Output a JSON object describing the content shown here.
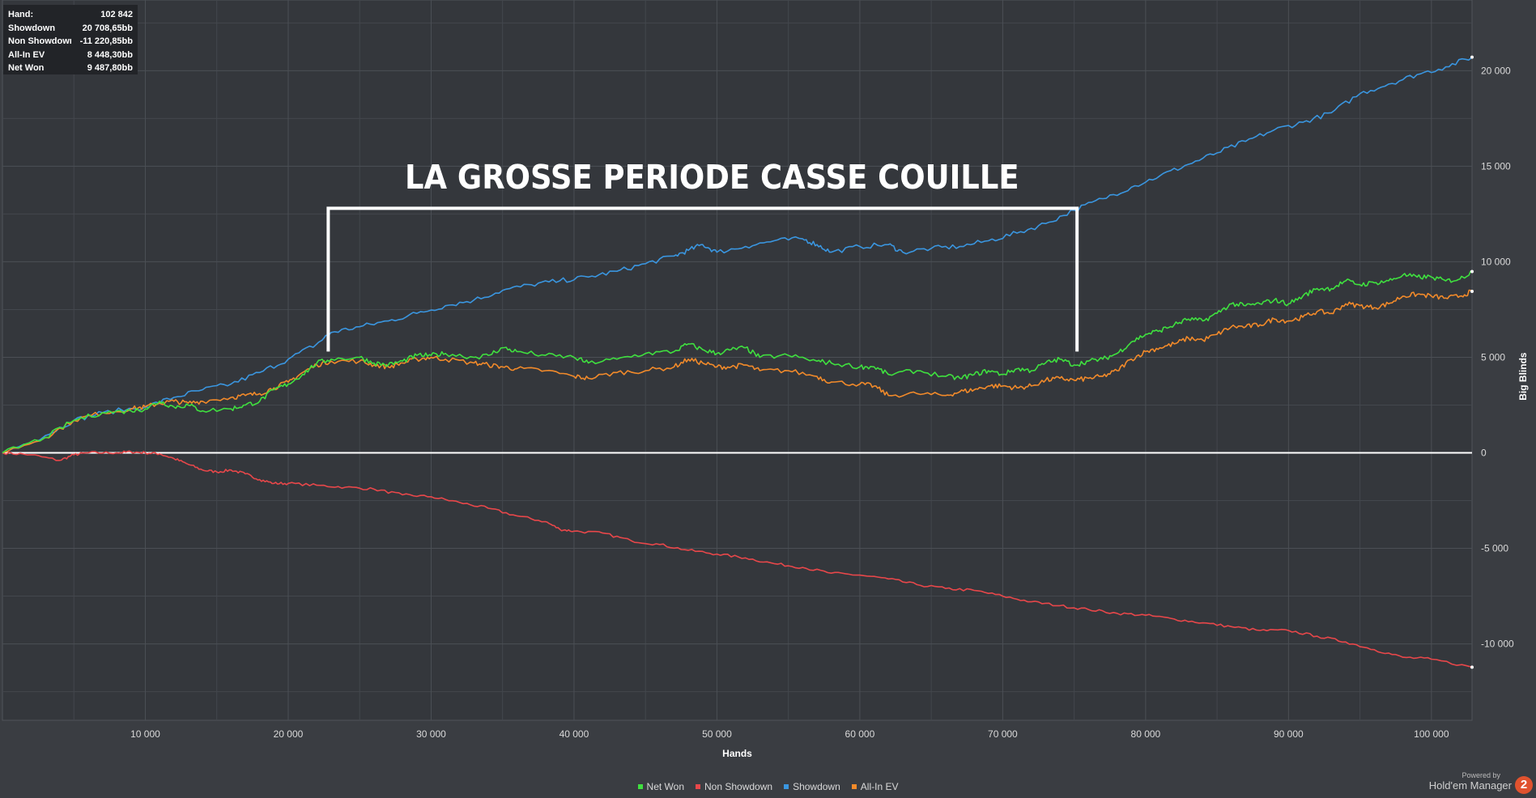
{
  "stats": [
    {
      "label": "Hand:",
      "value": "102 842"
    },
    {
      "label": "Showdown",
      "value": "20 708,65bb"
    },
    {
      "label": "Non Showdown",
      "value": "-11 220,85bb"
    },
    {
      "label": "All-In EV",
      "value": "8 448,30bb"
    },
    {
      "label": "Net Won",
      "value": "9 487,80bb"
    }
  ],
  "annotation": "LA GROSSE PERIODE CASSE COUILLE",
  "powered_by": {
    "small": "Powered by",
    "brand": "Hold'em Manager",
    "badge": "2"
  },
  "colors": {
    "background": "#3a3d42",
    "grid": "#4b4f55",
    "net_won": "#3fe03f",
    "non_showdown": "#e8474a",
    "showdown": "#3a96e0",
    "all_in_ev": "#f28a2a",
    "bracket": "#ffffff"
  },
  "chart_data": {
    "type": "line",
    "xlabel": "Hands",
    "ylabel": "Big Blinds",
    "xlim": [
      0,
      102842
    ],
    "ylim": [
      -14000,
      23700
    ],
    "x_ticks": [
      10000,
      20000,
      30000,
      40000,
      50000,
      60000,
      70000,
      80000,
      90000,
      100000
    ],
    "x_tick_labels": [
      "10 000",
      "20 000",
      "30 000",
      "40 000",
      "50 000",
      "60 000",
      "70 000",
      "80 000",
      "90 000",
      "100 000"
    ],
    "y_ticks": [
      -10000,
      -5000,
      0,
      5000,
      10000,
      15000,
      20000
    ],
    "y_tick_labels": [
      "-10 000",
      "-5 000",
      "0",
      "5 000",
      "10 000",
      "15 000",
      "20 000"
    ],
    "legend_position": "bottom",
    "grid": true,
    "series": [
      {
        "name": "Net Won",
        "color_key": "net_won",
        "points": [
          [
            0,
            0
          ],
          [
            3000,
            800
          ],
          [
            5000,
            1700
          ],
          [
            7000,
            2100
          ],
          [
            9000,
            2200
          ],
          [
            10000,
            2300
          ],
          [
            11000,
            2700
          ],
          [
            12000,
            2400
          ],
          [
            13000,
            2500
          ],
          [
            14000,
            2200
          ],
          [
            16000,
            2300
          ],
          [
            17000,
            2500
          ],
          [
            18000,
            2700
          ],
          [
            19000,
            3300
          ],
          [
            20000,
            3600
          ],
          [
            21000,
            4100
          ],
          [
            22000,
            4700
          ],
          [
            23000,
            4900
          ],
          [
            25000,
            5000
          ],
          [
            26000,
            4700
          ],
          [
            27000,
            4600
          ],
          [
            28000,
            4800
          ],
          [
            29000,
            5100
          ],
          [
            30000,
            5100
          ],
          [
            31000,
            5200
          ],
          [
            33000,
            5000
          ],
          [
            34000,
            5100
          ],
          [
            35000,
            5500
          ],
          [
            36000,
            5300
          ],
          [
            38000,
            5100
          ],
          [
            40000,
            5000
          ],
          [
            41000,
            4700
          ],
          [
            43000,
            4900
          ],
          [
            45000,
            5200
          ],
          [
            47000,
            5300
          ],
          [
            48000,
            5700
          ],
          [
            49000,
            5400
          ],
          [
            50000,
            5200
          ],
          [
            51000,
            5400
          ],
          [
            52000,
            5500
          ],
          [
            53000,
            5000
          ],
          [
            55000,
            5100
          ],
          [
            57000,
            4800
          ],
          [
            58000,
            4700
          ],
          [
            60000,
            4500
          ],
          [
            61000,
            4500
          ],
          [
            62000,
            4100
          ],
          [
            64000,
            4300
          ],
          [
            66000,
            4000
          ],
          [
            67000,
            3900
          ],
          [
            68000,
            4100
          ],
          [
            69000,
            4300
          ],
          [
            70000,
            4100
          ],
          [
            71000,
            4400
          ],
          [
            72000,
            4300
          ],
          [
            73000,
            4700
          ],
          [
            74000,
            4900
          ],
          [
            75000,
            4600
          ],
          [
            76000,
            4800
          ],
          [
            77000,
            4900
          ],
          [
            78000,
            5200
          ],
          [
            79000,
            5800
          ],
          [
            80000,
            6200
          ],
          [
            81000,
            6400
          ],
          [
            82000,
            6700
          ],
          [
            83000,
            7000
          ],
          [
            84000,
            6900
          ],
          [
            85000,
            7300
          ],
          [
            86000,
            7800
          ],
          [
            87000,
            7700
          ],
          [
            88000,
            7800
          ],
          [
            89000,
            8000
          ],
          [
            90000,
            7800
          ],
          [
            91000,
            8200
          ],
          [
            92000,
            8600
          ],
          [
            93000,
            8600
          ],
          [
            94000,
            9000
          ],
          [
            95000,
            8800
          ],
          [
            96000,
            8900
          ],
          [
            97000,
            9000
          ],
          [
            98000,
            9300
          ],
          [
            99000,
            9200
          ],
          [
            100000,
            9200
          ],
          [
            101000,
            9000
          ],
          [
            102000,
            9100
          ],
          [
            102842,
            9488
          ]
        ]
      },
      {
        "name": "Non Showdown",
        "color_key": "non_showdown",
        "points": [
          [
            0,
            0
          ],
          [
            2000,
            -100
          ],
          [
            4000,
            -400
          ],
          [
            5000,
            -100
          ],
          [
            6000,
            0
          ],
          [
            8000,
            0
          ],
          [
            9000,
            50
          ],
          [
            10000,
            0
          ],
          [
            11000,
            -50
          ],
          [
            12000,
            -300
          ],
          [
            13000,
            -600
          ],
          [
            14000,
            -900
          ],
          [
            15000,
            -1000
          ],
          [
            16000,
            -900
          ],
          [
            17000,
            -1100
          ],
          [
            18000,
            -1400
          ],
          [
            19000,
            -1600
          ],
          [
            20000,
            -1600
          ],
          [
            22000,
            -1700
          ],
          [
            24000,
            -1800
          ],
          [
            26000,
            -1900
          ],
          [
            28000,
            -2200
          ],
          [
            30000,
            -2300
          ],
          [
            32000,
            -2600
          ],
          [
            34000,
            -2900
          ],
          [
            36000,
            -3300
          ],
          [
            38000,
            -3600
          ],
          [
            39000,
            -4000
          ],
          [
            40000,
            -4100
          ],
          [
            42000,
            -4200
          ],
          [
            44000,
            -4600
          ],
          [
            46000,
            -4800
          ],
          [
            48000,
            -5100
          ],
          [
            50000,
            -5300
          ],
          [
            52000,
            -5500
          ],
          [
            54000,
            -5800
          ],
          [
            56000,
            -6000
          ],
          [
            58000,
            -6300
          ],
          [
            60000,
            -6400
          ],
          [
            62000,
            -6600
          ],
          [
            64000,
            -6900
          ],
          [
            66000,
            -7100
          ],
          [
            68000,
            -7200
          ],
          [
            70000,
            -7500
          ],
          [
            72000,
            -7800
          ],
          [
            74000,
            -8000
          ],
          [
            76000,
            -8200
          ],
          [
            78000,
            -8400
          ],
          [
            80000,
            -8500
          ],
          [
            82000,
            -8700
          ],
          [
            84000,
            -8900
          ],
          [
            86000,
            -9100
          ],
          [
            88000,
            -9300
          ],
          [
            90000,
            -9300
          ],
          [
            92000,
            -9600
          ],
          [
            94000,
            -9900
          ],
          [
            96000,
            -10300
          ],
          [
            98000,
            -10700
          ],
          [
            100000,
            -10800
          ],
          [
            102842,
            -11221
          ]
        ]
      },
      {
        "name": "Showdown",
        "color_key": "showdown",
        "points": [
          [
            0,
            0
          ],
          [
            3000,
            900
          ],
          [
            5000,
            1700
          ],
          [
            7000,
            2100
          ],
          [
            10000,
            2400
          ],
          [
            12000,
            2900
          ],
          [
            14000,
            3300
          ],
          [
            16000,
            3600
          ],
          [
            18000,
            4200
          ],
          [
            20000,
            4900
          ],
          [
            22000,
            5700
          ],
          [
            23000,
            6300
          ],
          [
            25000,
            6600
          ],
          [
            27000,
            6900
          ],
          [
            29000,
            7300
          ],
          [
            31000,
            7700
          ],
          [
            33000,
            8000
          ],
          [
            35000,
            8500
          ],
          [
            37000,
            8800
          ],
          [
            39000,
            9000
          ],
          [
            41000,
            9200
          ],
          [
            43000,
            9500
          ],
          [
            45000,
            9900
          ],
          [
            47000,
            10300
          ],
          [
            48000,
            10600
          ],
          [
            49000,
            10900
          ],
          [
            50000,
            10500
          ],
          [
            52000,
            10800
          ],
          [
            54000,
            11100
          ],
          [
            56000,
            11200
          ],
          [
            57000,
            10900
          ],
          [
            58000,
            10500
          ],
          [
            60000,
            10800
          ],
          [
            62000,
            10900
          ],
          [
            63000,
            10500
          ],
          [
            65000,
            10700
          ],
          [
            67000,
            10800
          ],
          [
            69000,
            11100
          ],
          [
            71000,
            11500
          ],
          [
            73000,
            12000
          ],
          [
            75000,
            12700
          ],
          [
            77000,
            13300
          ],
          [
            79000,
            13900
          ],
          [
            81000,
            14500
          ],
          [
            83000,
            15100
          ],
          [
            85000,
            15700
          ],
          [
            87000,
            16300
          ],
          [
            89000,
            16900
          ],
          [
            91000,
            17300
          ],
          [
            93000,
            17800
          ],
          [
            95000,
            18800
          ],
          [
            97000,
            19300
          ],
          [
            99000,
            19800
          ],
          [
            101000,
            20200
          ],
          [
            102842,
            20709
          ]
        ]
      },
      {
        "name": "All-In EV",
        "color_key": "all_in_ev",
        "points": [
          [
            0,
            0
          ],
          [
            3000,
            800
          ],
          [
            5000,
            1700
          ],
          [
            7000,
            2100
          ],
          [
            9000,
            2300
          ],
          [
            10000,
            2400
          ],
          [
            11000,
            2600
          ],
          [
            12000,
            2700
          ],
          [
            13000,
            2600
          ],
          [
            14000,
            2700
          ],
          [
            16000,
            2900
          ],
          [
            17000,
            3000
          ],
          [
            18000,
            3100
          ],
          [
            19000,
            3400
          ],
          [
            20000,
            3700
          ],
          [
            21000,
            4200
          ],
          [
            22000,
            4600
          ],
          [
            23000,
            4800
          ],
          [
            25000,
            4800
          ],
          [
            26000,
            4600
          ],
          [
            27000,
            4500
          ],
          [
            28000,
            4700
          ],
          [
            29000,
            4900
          ],
          [
            30000,
            5000
          ],
          [
            31000,
            4900
          ],
          [
            33000,
            4700
          ],
          [
            34000,
            4600
          ],
          [
            35000,
            4500
          ],
          [
            36000,
            4400
          ],
          [
            38000,
            4300
          ],
          [
            40000,
            4000
          ],
          [
            41000,
            3900
          ],
          [
            43000,
            4200
          ],
          [
            45000,
            4300
          ],
          [
            47000,
            4500
          ],
          [
            48000,
            4900
          ],
          [
            49000,
            4700
          ],
          [
            50000,
            4500
          ],
          [
            51000,
            4500
          ],
          [
            52000,
            4600
          ],
          [
            53000,
            4300
          ],
          [
            55000,
            4300
          ],
          [
            57000,
            4000
          ],
          [
            58000,
            3700
          ],
          [
            60000,
            3600
          ],
          [
            61000,
            3500
          ],
          [
            62000,
            3000
          ],
          [
            64000,
            3100
          ],
          [
            66000,
            3000
          ],
          [
            67000,
            3200
          ],
          [
            68000,
            3300
          ],
          [
            69000,
            3500
          ],
          [
            70000,
            3500
          ],
          [
            71000,
            3400
          ],
          [
            72000,
            3500
          ],
          [
            73000,
            3800
          ],
          [
            74000,
            3900
          ],
          [
            75000,
            3800
          ],
          [
            76000,
            3900
          ],
          [
            77000,
            4000
          ],
          [
            78000,
            4300
          ],
          [
            79000,
            4900
          ],
          [
            80000,
            5300
          ],
          [
            81000,
            5500
          ],
          [
            82000,
            5700
          ],
          [
            83000,
            6000
          ],
          [
            84000,
            5900
          ],
          [
            85000,
            6200
          ],
          [
            86000,
            6600
          ],
          [
            87000,
            6600
          ],
          [
            88000,
            6700
          ],
          [
            89000,
            7000
          ],
          [
            90000,
            6900
          ],
          [
            91000,
            7100
          ],
          [
            92000,
            7400
          ],
          [
            93000,
            7300
          ],
          [
            94000,
            7800
          ],
          [
            95000,
            7700
          ],
          [
            96000,
            7600
          ],
          [
            97000,
            7800
          ],
          [
            98000,
            8200
          ],
          [
            99000,
            8300
          ],
          [
            100000,
            8200
          ],
          [
            101000,
            8100
          ],
          [
            102000,
            8200
          ],
          [
            102842,
            8448
          ]
        ]
      }
    ],
    "bracket": {
      "x_start": 22800,
      "x_end": 75200,
      "y_top": 12800,
      "y_bottom": 5300
    }
  }
}
